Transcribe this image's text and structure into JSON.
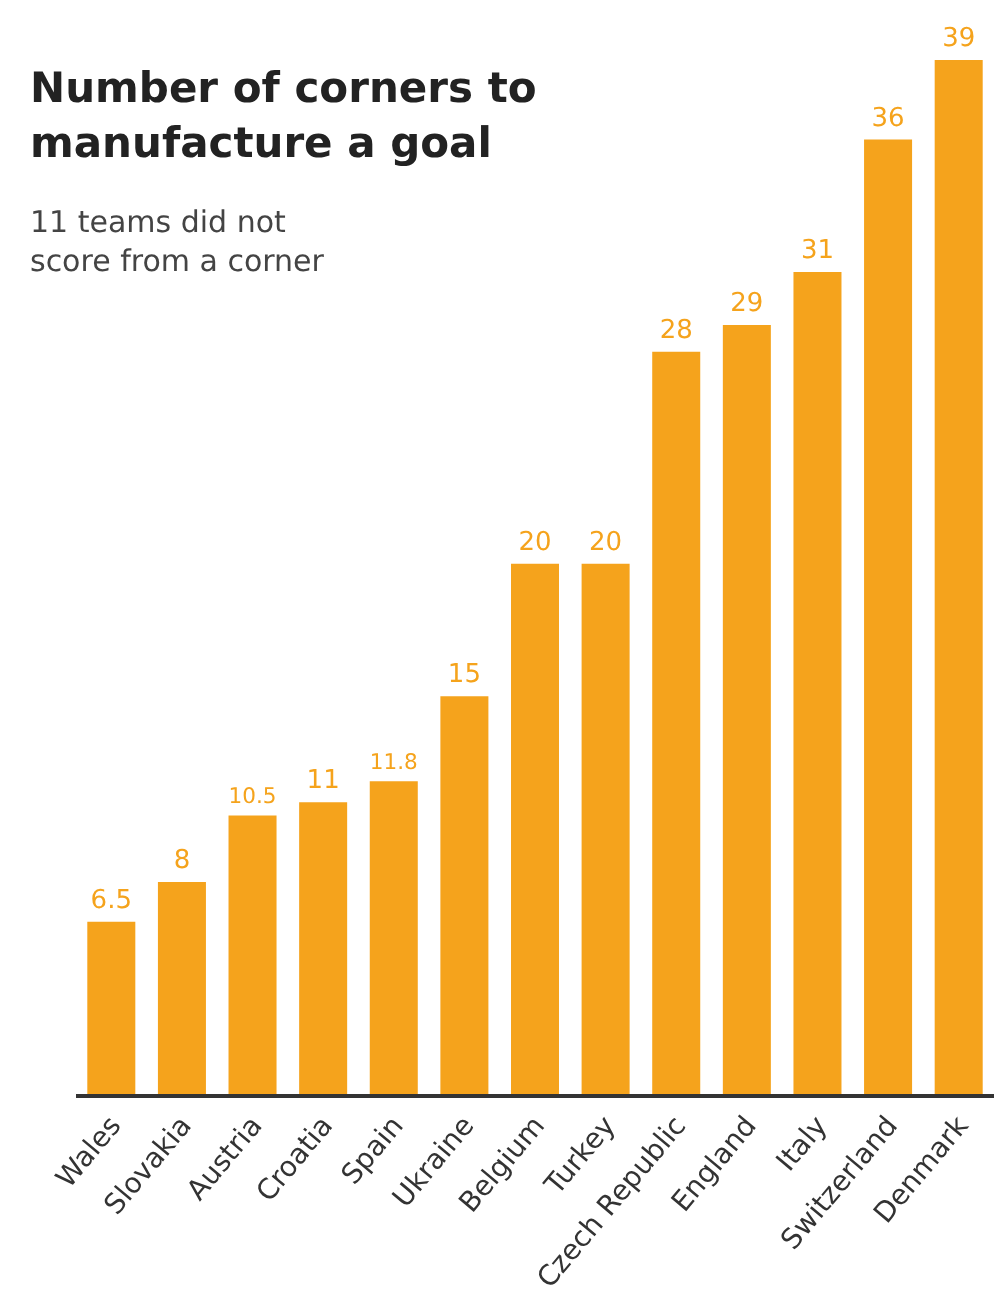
{
  "chart_data": {
    "type": "bar",
    "title": "Number of corners to manufacture a goal",
    "subtitle": "11 teams did not score from a corner",
    "categories": [
      "Wales",
      "Slovakia",
      "Austria",
      "Croatia",
      "Spain",
      "Ukraine",
      "Belgium",
      "Turkey",
      "Czech Republic",
      "England",
      "Italy",
      "Switzerland",
      "Denmark"
    ],
    "values": [
      6.5,
      8,
      10.5,
      11,
      11.8,
      15,
      20,
      20,
      28,
      29,
      31,
      36,
      39
    ],
    "color": "#f5a31c",
    "data_labels": true,
    "legend": false
  }
}
